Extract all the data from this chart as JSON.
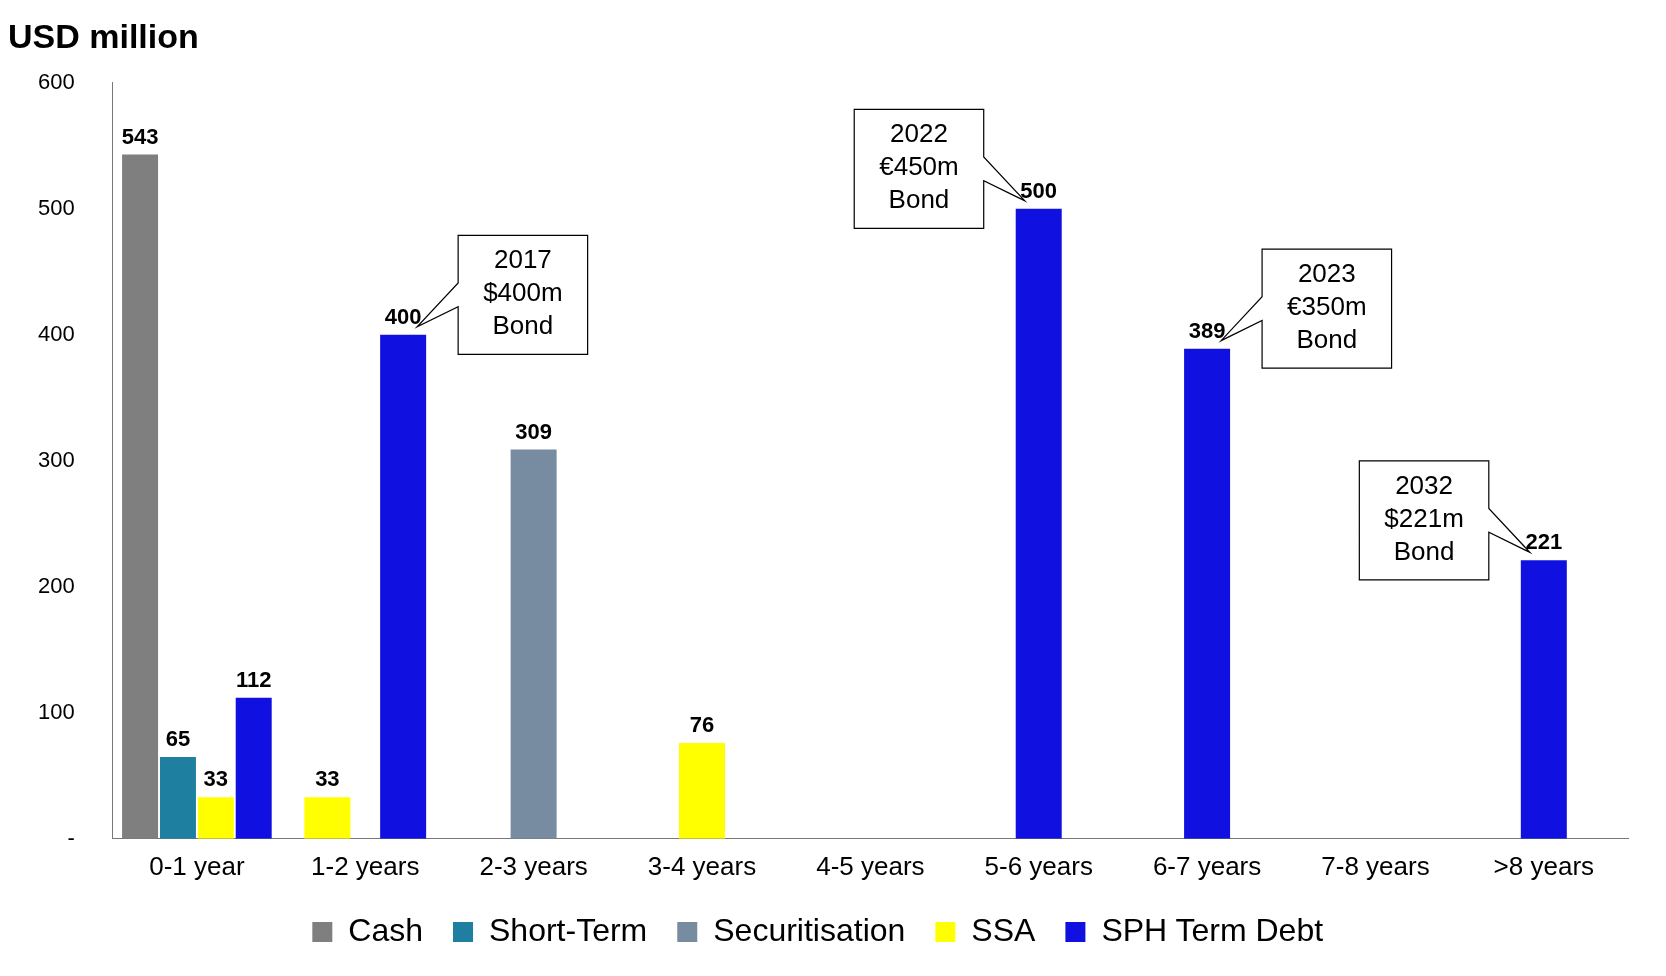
{
  "chart_data": {
    "type": "bar",
    "title": "USD million",
    "categories": [
      "0-1 year",
      "1-2 years",
      "2-3 years",
      "3-4 years",
      "4-5 years",
      "5-6 years",
      "6-7 years",
      "7-8 years",
      ">8 years"
    ],
    "series": [
      {
        "name": "Cash",
        "color": "#7f7f7f",
        "values": [
          543,
          null,
          null,
          null,
          null,
          null,
          null,
          null,
          null
        ]
      },
      {
        "name": "Short-Term",
        "color": "#1f7fa0",
        "values": [
          65,
          null,
          null,
          null,
          null,
          null,
          null,
          null,
          null
        ]
      },
      {
        "name": "Securitisation",
        "color": "#778ca0",
        "values": [
          null,
          null,
          309,
          null,
          null,
          null,
          null,
          null,
          null
        ]
      },
      {
        "name": "SSA",
        "color": "#ffff00",
        "values": [
          33,
          33,
          null,
          76,
          null,
          null,
          null,
          null,
          null
        ]
      },
      {
        "name": "SPH Term Debt",
        "color": "#1010e0",
        "values": [
          112,
          400,
          null,
          null,
          null,
          500,
          389,
          null,
          221
        ]
      }
    ],
    "ylim": [
      0,
      600
    ],
    "yticks": [
      {
        "value": 0,
        "label": "-"
      },
      100,
      200,
      300,
      400,
      500,
      600
    ],
    "data_labels": true,
    "grid": false,
    "legend": "bottom",
    "annotations": [
      "2017 $400m Bond",
      "2022 €450m Bond",
      "2023 €350m Bond",
      "2032 $221m Bond"
    ]
  }
}
